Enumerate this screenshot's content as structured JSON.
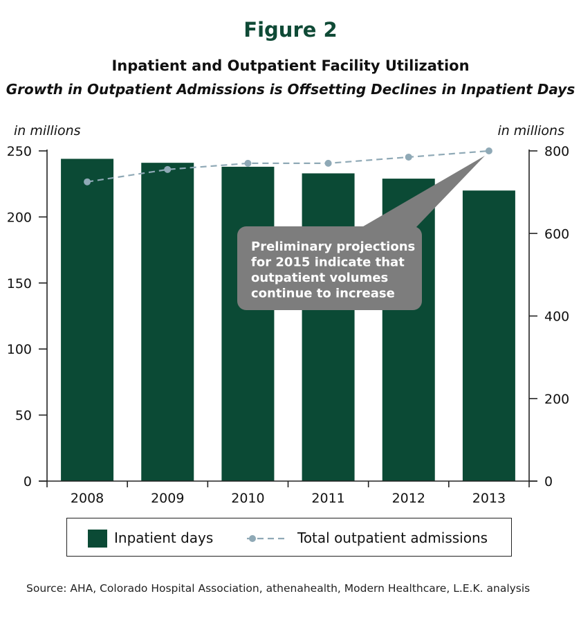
{
  "figure_label": "Figure 2",
  "title": "Inpatient and Outpatient Facility Utilization",
  "subtitle": "Growth in Outpatient Admissions is Offsetting Declines in Inpatient Days",
  "left_axis_unit": "in millions",
  "right_axis_unit": "in millions",
  "callout": {
    "lines": [
      "Preliminary projections",
      "for 2015 indicate that",
      "outpatient volumes",
      "continue to increase"
    ]
  },
  "legend": {
    "bar_label": "Inpatient days",
    "line_label": "Total outpatient admissions"
  },
  "source": "Source: AHA, Colorado Hospital Association, athenahealth, Modern Healthcare, L.E.K. analysis",
  "colors": {
    "bar": "#0b4a35",
    "line": "#8fa9b6",
    "callout": "#7d7d7d",
    "figure_label": "#0f4a36"
  },
  "chart_data": {
    "type": "bar",
    "categories": [
      "2008",
      "2009",
      "2010",
      "2011",
      "2012",
      "2013"
    ],
    "series": [
      {
        "name": "Inpatient days",
        "type": "bar",
        "axis": "left",
        "values": [
          244,
          241,
          238,
          233,
          229,
          220
        ]
      },
      {
        "name": "Total outpatient admissions",
        "type": "line",
        "style": "dashed",
        "axis": "right",
        "values": [
          725,
          755,
          770,
          770,
          785,
          800
        ]
      }
    ],
    "y_left": {
      "label": "in millions",
      "ylim": [
        0,
        250
      ],
      "ticks": [
        0,
        50,
        100,
        150,
        200,
        250
      ]
    },
    "y_right": {
      "label": "in millions",
      "ylim": [
        0,
        800
      ],
      "ticks": [
        0,
        200,
        400,
        600,
        800
      ]
    },
    "grid": false,
    "legend_position": "bottom"
  }
}
